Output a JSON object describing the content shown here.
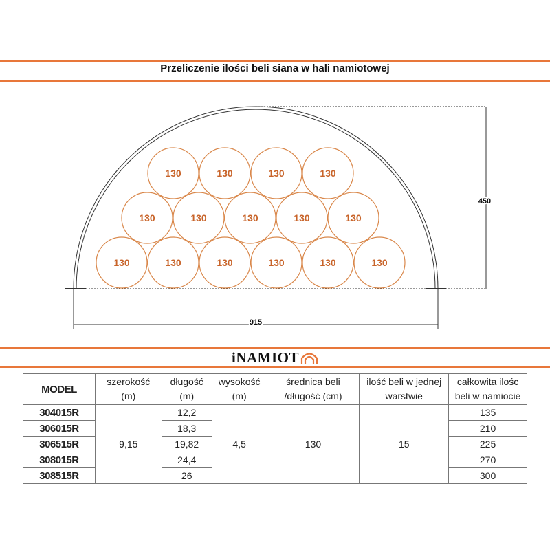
{
  "title": "Przeliczenie ilości beli siana w hali namiotowej",
  "diagram": {
    "bale_label": "130",
    "rows": [
      4,
      5,
      6
    ],
    "height_label": "450",
    "width_label": "915",
    "bale_color": "#d9874a",
    "accent_color": "#e8773a"
  },
  "logo": {
    "text": "iNAMIOT"
  },
  "table": {
    "headers": [
      [
        "MODEL"
      ],
      [
        "szerokość",
        "(m)"
      ],
      [
        "długość",
        "(m)"
      ],
      [
        "wysokość",
        "(m)"
      ],
      [
        "średnica beli",
        "/długość (cm)"
      ],
      [
        "ilość beli w jednej",
        "warstwie"
      ],
      [
        "całkowita ilośc",
        "beli w namiocie"
      ]
    ],
    "models": [
      "304015R",
      "306015R",
      "306515R",
      "308015R",
      "308515R"
    ],
    "lengths": [
      "12,2",
      "18,3",
      "19,82",
      "24,4",
      "26"
    ],
    "totals": [
      "135",
      "210",
      "225",
      "270",
      "300"
    ],
    "width": "9,15",
    "height": "4,5",
    "bale_diameter": "130",
    "bales_per_layer": "15"
  }
}
